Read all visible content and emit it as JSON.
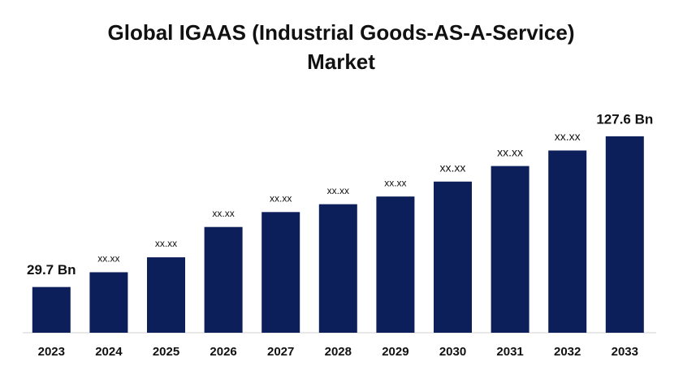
{
  "chart_data": {
    "type": "bar",
    "title": "Global IGAAS (Industrial Goods-AS-A-Service) Market",
    "categories": [
      "2023",
      "2024",
      "2025",
      "2026",
      "2027",
      "2028",
      "2029",
      "2030",
      "2031",
      "2032",
      "2033"
    ],
    "values": [
      29.7,
      39.3,
      49.0,
      68.7,
      78.4,
      83.5,
      88.5,
      98.2,
      108.3,
      118.4,
      127.6
    ],
    "value_labels": [
      "29.7 Bn",
      "xx.xx",
      "xx.xx",
      "xx.xx",
      "xx.xx",
      "xx.xx",
      "xx.xx",
      "xx.xx",
      "xx.xx",
      "xx.xx",
      "127.6 Bn"
    ],
    "color": "#0c1f5b"
  }
}
